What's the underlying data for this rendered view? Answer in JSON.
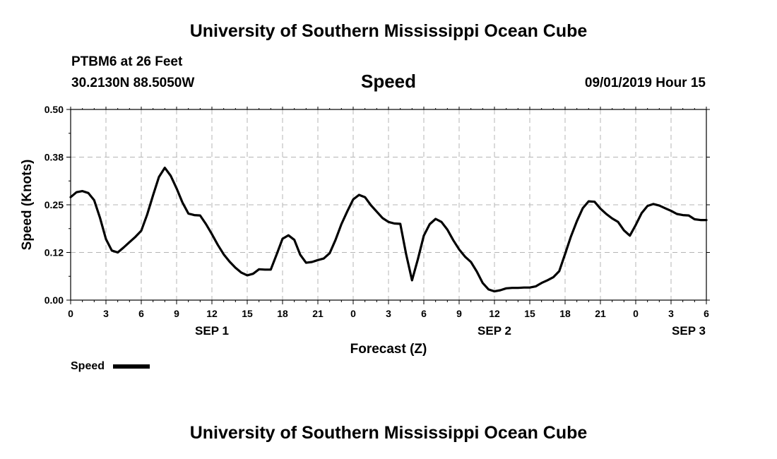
{
  "header": {
    "title": "University of Southern Mississippi Ocean Cube",
    "station": "PTBM6 at 26 Feet",
    "coords": "30.2130N 88.5050W",
    "variable": "Speed",
    "timestamp": "09/01/2019 Hour 15"
  },
  "footer": {
    "title": "University of Southern Mississippi Ocean Cube"
  },
  "legend": {
    "label": "Speed",
    "color": "#000000"
  },
  "chart_data": {
    "type": "line",
    "title": "Speed",
    "xlabel": "Forecast (Z)",
    "ylabel": "Speed (Knots)",
    "ylim": [
      0,
      0.5
    ],
    "xlim_hours": [
      0,
      54
    ],
    "yticks": [
      "0.00",
      "0.12",
      "0.25",
      "0.38",
      "0.50"
    ],
    "xtick_labels": [
      "0",
      "3",
      "6",
      "9",
      "12",
      "15",
      "18",
      "21",
      "0",
      "3",
      "6",
      "9",
      "12",
      "15",
      "18",
      "21",
      "0",
      "3",
      "6"
    ],
    "day_labels": [
      {
        "label": "SEP 1",
        "hour": 12
      },
      {
        "label": "SEP 2",
        "hour": 36
      },
      {
        "label": "SEP 3",
        "hour": 52.5
      }
    ],
    "grid": true,
    "legend_position": "bottom-left",
    "series": [
      {
        "name": "Speed",
        "color": "#000000",
        "x": [
          0,
          0.5,
          1,
          1.5,
          2,
          2.5,
          3,
          3.5,
          4,
          4.5,
          5,
          5.5,
          6,
          6.5,
          7,
          7.5,
          8,
          8.5,
          9,
          9.5,
          10,
          10.5,
          11,
          11.5,
          12,
          12.5,
          13,
          13.5,
          14,
          14.5,
          15,
          15.5,
          16,
          16.5,
          17,
          17.5,
          18,
          18.5,
          19,
          19.5,
          20,
          20.5,
          21,
          21.5,
          22,
          22.5,
          23,
          23.5,
          24,
          24.5,
          25,
          25.5,
          26,
          26.5,
          27,
          27.5,
          28,
          28.5,
          29,
          29.5,
          30,
          30.5,
          31,
          31.5,
          32,
          32.5,
          33,
          33.5,
          34,
          34.5,
          35,
          35.5,
          36,
          36.5,
          37,
          37.5,
          38,
          38.5,
          39,
          39.5,
          40,
          40.5,
          41,
          41.5,
          42,
          42.5,
          43,
          43.5,
          44,
          44.5,
          45,
          45.5,
          46,
          46.5,
          47,
          47.5,
          48,
          48.5,
          49,
          49.5,
          50,
          50.5,
          51,
          51.5,
          52,
          52.5,
          53,
          53.5,
          54
        ],
        "values": [
          0.27,
          0.283,
          0.286,
          0.281,
          0.262,
          0.215,
          0.16,
          0.13,
          0.125,
          0.138,
          0.152,
          0.166,
          0.182,
          0.224,
          0.275,
          0.323,
          0.347,
          0.326,
          0.293,
          0.256,
          0.227,
          0.223,
          0.222,
          0.199,
          0.173,
          0.145,
          0.12,
          0.101,
          0.085,
          0.072,
          0.065,
          0.069,
          0.081,
          0.08,
          0.08,
          0.12,
          0.161,
          0.17,
          0.158,
          0.119,
          0.098,
          0.1,
          0.105,
          0.109,
          0.123,
          0.158,
          0.199,
          0.233,
          0.264,
          0.276,
          0.27,
          0.249,
          0.232,
          0.215,
          0.205,
          0.201,
          0.2,
          0.12,
          0.052,
          0.108,
          0.169,
          0.199,
          0.213,
          0.205,
          0.185,
          0.157,
          0.133,
          0.114,
          0.1,
          0.075,
          0.045,
          0.028,
          0.023,
          0.026,
          0.031,
          0.032,
          0.032,
          0.033,
          0.033,
          0.036,
          0.045,
          0.052,
          0.06,
          0.076,
          0.121,
          0.167,
          0.207,
          0.241,
          0.259,
          0.258,
          0.24,
          0.226,
          0.214,
          0.205,
          0.183,
          0.169,
          0.197,
          0.228,
          0.247,
          0.252,
          0.248,
          0.241,
          0.234,
          0.226,
          0.223,
          0.222,
          0.212,
          0.21,
          0.21
        ]
      }
    ]
  }
}
